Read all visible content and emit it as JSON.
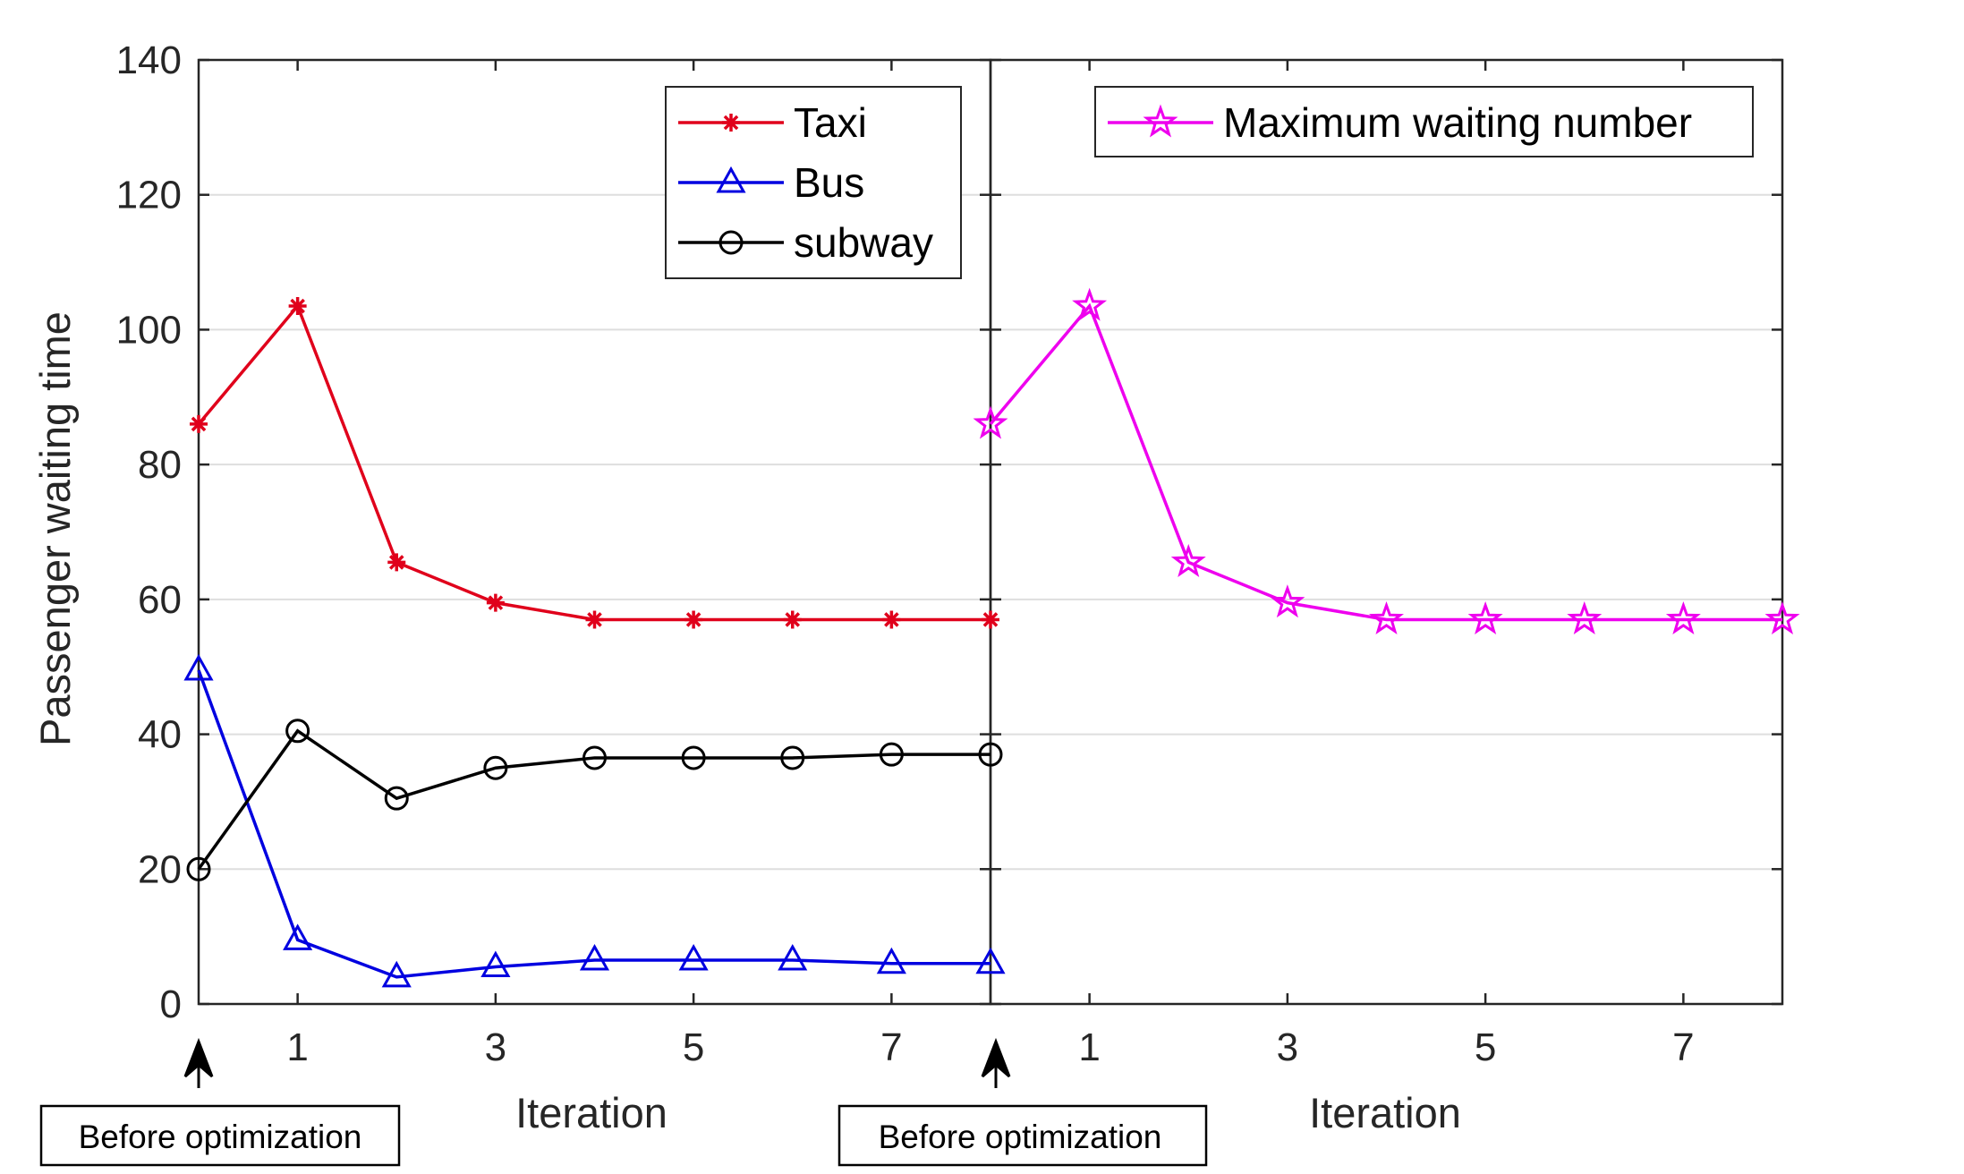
{
  "chart_data": {
    "type": "line",
    "ylabel": "Passenger waiting time",
    "ylim": [
      0,
      140
    ],
    "yticks": [
      "0",
      "20",
      "40",
      "60",
      "80",
      "100",
      "120",
      "140"
    ],
    "grid": true,
    "panels": [
      {
        "id": "left",
        "xlabel": "Iteration",
        "xlim": [
          0,
          8
        ],
        "xticks": [
          "1",
          "3",
          "5",
          "7"
        ],
        "legend_position": "top-right",
        "annotation": "Before optimization",
        "series": [
          {
            "name": "Taxi",
            "color": "#e0001b",
            "marker": "asterisk",
            "x": [
              0,
              1,
              2,
              3,
              4,
              5,
              6,
              7,
              8
            ],
            "values": [
              86,
              103.5,
              65.5,
              59.5,
              57,
              57,
              57,
              57,
              57
            ]
          },
          {
            "name": "Bus",
            "color": "#0000e0",
            "marker": "triangle",
            "x": [
              0,
              1,
              2,
              3,
              4,
              5,
              6,
              7,
              8
            ],
            "values": [
              49.5,
              9.5,
              4,
              5.5,
              6.5,
              6.5,
              6.5,
              6,
              6
            ]
          },
          {
            "name": "subway",
            "color": "#000000",
            "marker": "circle",
            "x": [
              0,
              1,
              2,
              3,
              4,
              5,
              6,
              7,
              8
            ],
            "values": [
              20,
              40.5,
              30.5,
              35,
              36.5,
              36.5,
              36.5,
              37,
              37
            ]
          }
        ]
      },
      {
        "id": "right",
        "xlabel": "Iteration",
        "xlim": [
          0,
          8
        ],
        "xticks": [
          "1",
          "3",
          "5",
          "7"
        ],
        "legend_position": "top-right",
        "annotation": "Before optimization",
        "series": [
          {
            "name": "Maximum waiting number",
            "color": "#ee00ee",
            "marker": "star",
            "x": [
              0,
              1,
              2,
              3,
              4,
              5,
              6,
              7,
              8
            ],
            "values": [
              86,
              103.5,
              65.5,
              59.5,
              57,
              57,
              57,
              57,
              57
            ]
          }
        ]
      }
    ]
  }
}
